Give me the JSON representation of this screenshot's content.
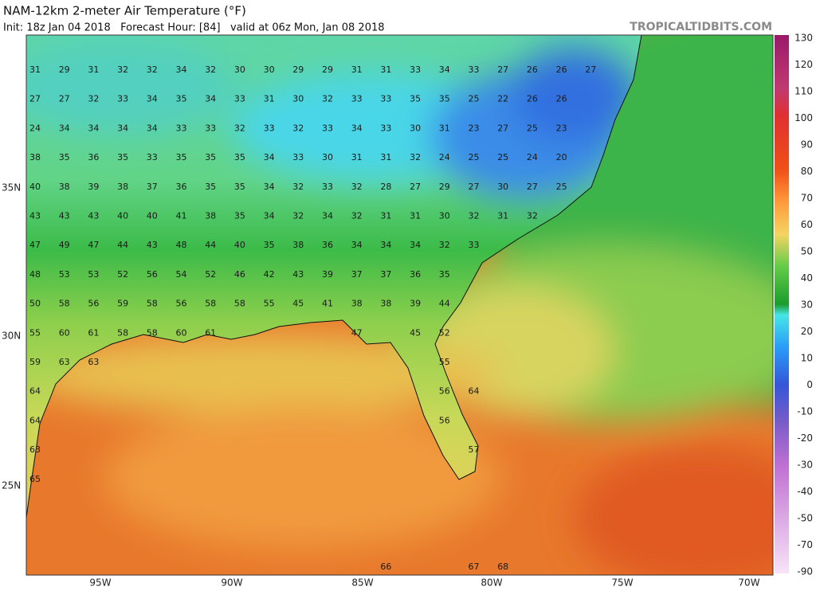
{
  "header": {
    "title": "NAM-12km 2-meter Air Temperature (°F)",
    "subtitle": "Init: 18z Jan 04 2018   Forecast Hour: [84]   valid at 06z Mon, Jan 08 2018",
    "site": "TROPICALTIDBITS.COM"
  },
  "map": {
    "longitude_labels": [
      "95W",
      "90W",
      "85W",
      "80W",
      "75W",
      "70W"
    ],
    "latitude_labels": [
      "35N",
      "30N",
      "25N"
    ],
    "station_rows": [
      [
        31,
        29,
        31,
        32,
        32,
        34,
        32,
        30,
        30,
        29,
        29,
        31,
        31,
        33,
        34,
        33,
        27,
        26,
        26,
        27
      ],
      [
        27,
        27,
        32,
        33,
        34,
        35,
        34,
        33,
        31,
        30,
        32,
        33,
        33,
        35,
        35,
        25,
        22,
        26,
        26
      ],
      [
        24,
        34,
        34,
        34,
        34,
        33,
        33,
        32,
        33,
        32,
        33,
        34,
        33,
        30,
        31,
        23,
        27,
        25,
        23
      ],
      [
        38,
        35,
        36,
        35,
        33,
        35,
        35,
        35,
        34,
        33,
        30,
        31,
        31,
        32,
        24,
        25,
        25,
        24,
        20
      ],
      [
        40,
        38,
        39,
        38,
        37,
        36,
        35,
        35,
        34,
        32,
        33,
        32,
        28,
        27,
        29,
        27,
        30,
        27,
        25
      ],
      [
        43,
        43,
        43,
        40,
        40,
        41,
        38,
        35,
        34,
        32,
        34,
        32,
        31,
        31,
        30,
        32,
        31,
        32
      ],
      [
        47,
        49,
        47,
        44,
        43,
        48,
        44,
        40,
        35,
        38,
        36,
        34,
        34,
        34,
        32,
        33
      ],
      [
        48,
        53,
        53,
        52,
        56,
        54,
        52,
        46,
        42,
        43,
        39,
        37,
        37,
        36,
        35
      ],
      [
        50,
        58,
        56,
        59,
        58,
        56,
        58,
        58,
        55,
        45,
        41,
        38,
        38,
        39,
        44
      ],
      [
        55,
        60,
        61,
        58,
        58,
        60,
        61,
        null,
        null,
        null,
        null,
        47,
        null,
        45,
        52
      ],
      [
        59,
        63,
        63,
        null,
        null,
        null,
        null,
        null,
        null,
        null,
        null,
        null,
        null,
        null,
        55
      ],
      [
        64,
        null,
        null,
        null,
        null,
        null,
        null,
        null,
        null,
        null,
        null,
        null,
        null,
        null,
        56,
        64
      ],
      [
        64,
        null,
        null,
        null,
        null,
        null,
        null,
        null,
        null,
        null,
        null,
        null,
        null,
        null,
        56
      ],
      [
        63,
        null,
        null,
        null,
        null,
        null,
        null,
        null,
        null,
        null,
        null,
        null,
        null,
        null,
        null,
        57
      ],
      [
        65
      ],
      [],
      [],
      [
        null,
        null,
        null,
        null,
        null,
        null,
        null,
        null,
        null,
        null,
        null,
        null,
        66,
        null,
        null,
        67,
        68
      ]
    ]
  },
  "colorbar": {
    "labels": [
      130,
      120,
      110,
      100,
      90,
      80,
      70,
      60,
      50,
      40,
      30,
      20,
      10,
      0,
      -10,
      -20,
      -30,
      -40,
      -50,
      -70,
      -90
    ]
  }
}
